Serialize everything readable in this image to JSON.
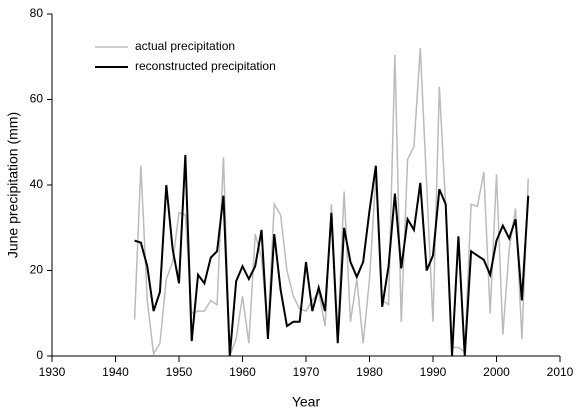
{
  "chart_data": {
    "type": "line",
    "x_label": "Year",
    "y_label": "June precipitation (mm)",
    "x": [
      1943,
      1944,
      1945,
      1946,
      1947,
      1948,
      1949,
      1950,
      1951,
      1952,
      1953,
      1954,
      1955,
      1956,
      1957,
      1958,
      1959,
      1960,
      1961,
      1962,
      1963,
      1964,
      1965,
      1966,
      1967,
      1968,
      1969,
      1970,
      1971,
      1972,
      1973,
      1974,
      1975,
      1976,
      1977,
      1978,
      1979,
      1980,
      1981,
      1982,
      1983,
      1984,
      1985,
      1986,
      1987,
      1988,
      1989,
      1990,
      1991,
      1992,
      1993,
      1994,
      1995,
      1996,
      1997,
      1998,
      1999,
      2000,
      2001,
      2002,
      2003,
      2004,
      2005
    ],
    "series": [
      {
        "name": "actual precipitation",
        "color": "#bbbbbb",
        "width": 1.5,
        "values": [
          8.5,
          44.5,
          13,
          0.5,
          3,
          18,
          22,
          33.5,
          33,
          10,
          10.5,
          10.5,
          13,
          12,
          46.5,
          0,
          4,
          14,
          3,
          28.5,
          23,
          6,
          35.5,
          33,
          20,
          14,
          11,
          10.5,
          13,
          15,
          7,
          35.5,
          5,
          38.5,
          8,
          18,
          3,
          18,
          42,
          13,
          12,
          70.5,
          8,
          46,
          49,
          72,
          40,
          8,
          63,
          35,
          2,
          2,
          1,
          35.5,
          35,
          43,
          10,
          42.5,
          5,
          25,
          34.5,
          4,
          41.5
        ]
      },
      {
        "name": "reconstructed precipitation",
        "color": "#000000",
        "width": 2,
        "values": [
          27,
          26.5,
          21,
          10.5,
          15,
          40,
          25,
          17,
          47,
          3.5,
          19,
          17,
          23,
          24.5,
          37.5,
          0,
          17.5,
          21,
          18,
          21,
          29.5,
          4,
          28.5,
          15.5,
          7,
          8,
          8,
          22,
          10.5,
          16,
          10.5,
          33.5,
          3,
          30,
          22,
          18.5,
          22,
          34,
          44.5,
          11.5,
          21,
          38,
          20.5,
          32,
          29.5,
          40.5,
          20,
          23.5,
          39,
          35.5,
          0,
          28,
          0,
          24.5,
          23.5,
          22.5,
          19,
          27,
          30.5,
          27.5,
          32,
          13,
          37.5
        ]
      }
    ],
    "xlim": [
      1930,
      2010
    ],
    "xticks": [
      1930,
      1940,
      1950,
      1960,
      1970,
      1980,
      1990,
      2000,
      2010
    ],
    "ylim": [
      0,
      80
    ],
    "yticks": [
      0,
      20,
      40,
      60,
      80
    ],
    "grid": false,
    "legend": "upper left"
  }
}
